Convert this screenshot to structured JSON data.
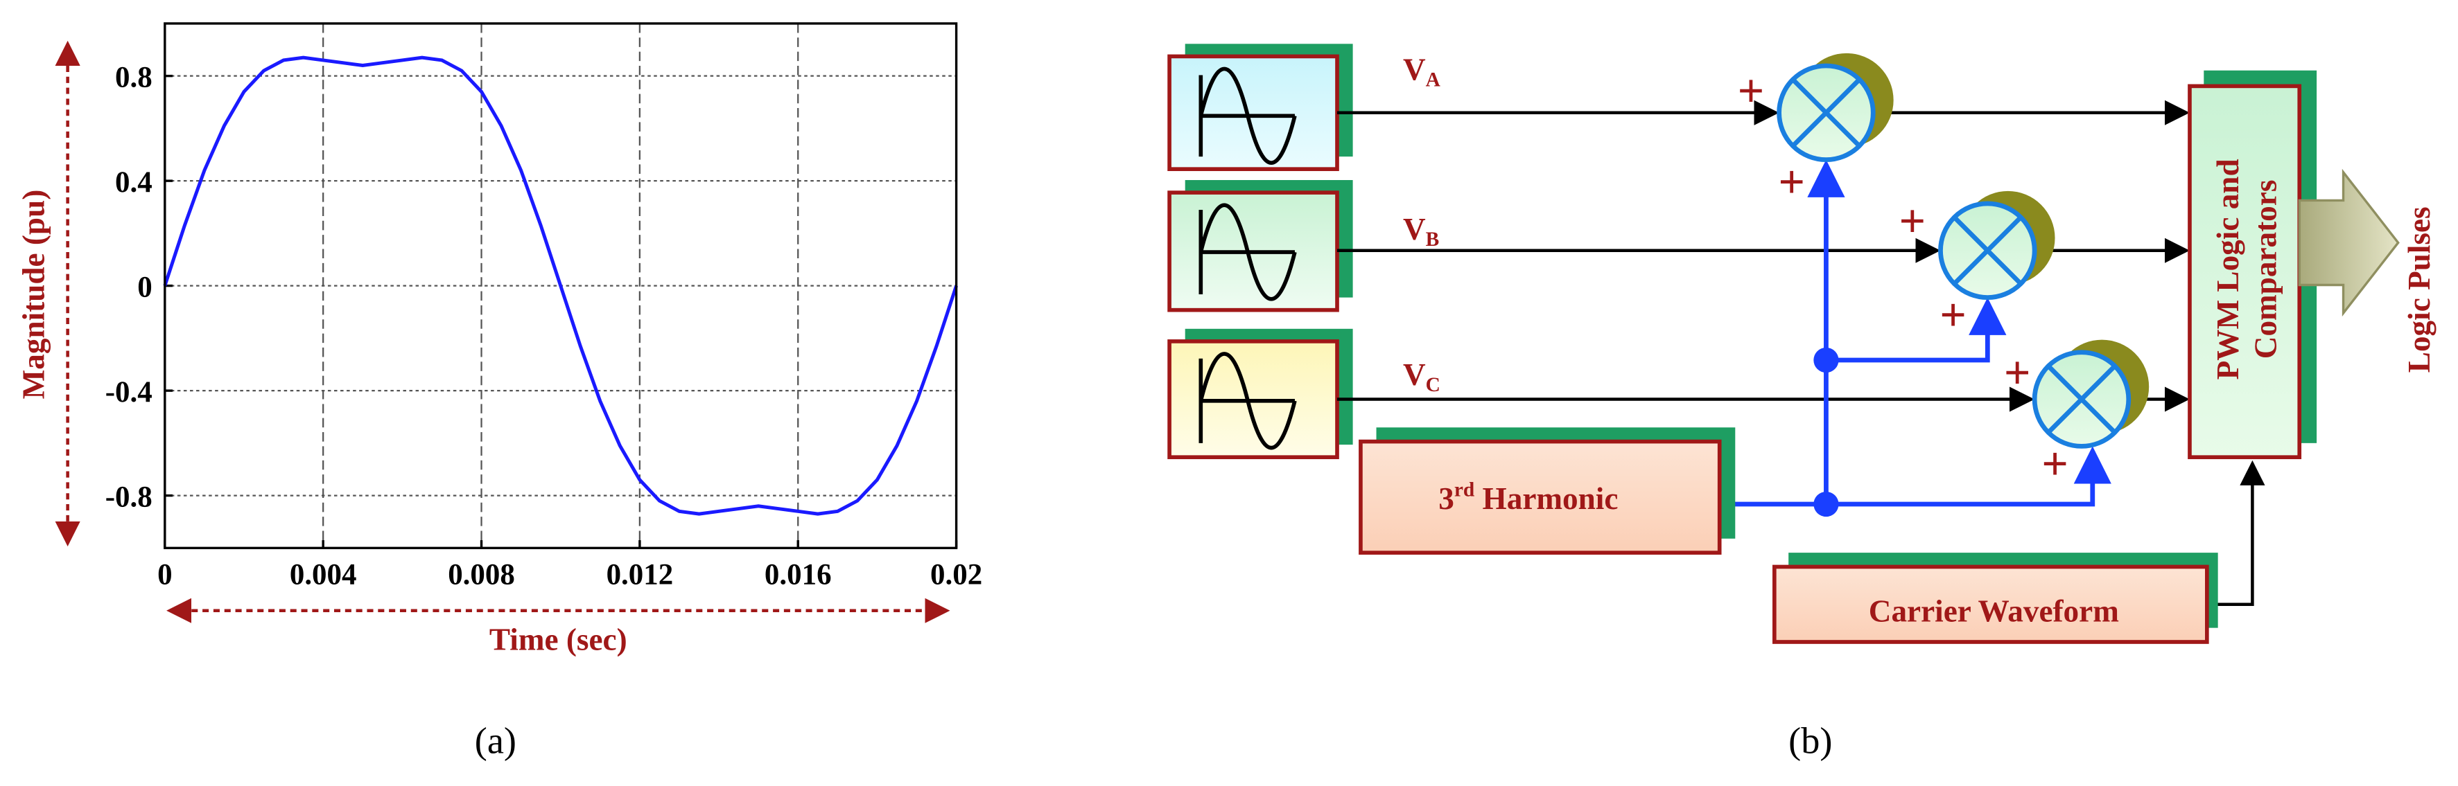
{
  "chart_data": {
    "type": "line",
    "x_label": "Time (sec)",
    "y_label": "Magnitude (pu)",
    "color": "#1a1aff",
    "grid": true,
    "x": [
      0,
      0.0005,
      0.001,
      0.0015,
      0.002,
      0.0025,
      0.003,
      0.0035,
      0.004,
      0.0045,
      0.005,
      0.0055,
      0.006,
      0.0065,
      0.007,
      0.0075,
      0.008,
      0.0085,
      0.009,
      0.0095,
      0.01,
      0.0105,
      0.011,
      0.0115,
      0.012,
      0.0125,
      0.013,
      0.0135,
      0.014,
      0.0145,
      0.015,
      0.0155,
      0.016,
      0.0165,
      0.017,
      0.0175,
      0.018,
      0.0185,
      0.019,
      0.0195,
      0.02
    ],
    "values": [
      0,
      0.23,
      0.44,
      0.61,
      0.74,
      0.82,
      0.86,
      0.87,
      0.86,
      0.85,
      0.84,
      0.85,
      0.86,
      0.87,
      0.86,
      0.82,
      0.74,
      0.61,
      0.44,
      0.23,
      0,
      -0.23,
      -0.44,
      -0.61,
      -0.74,
      -0.82,
      -0.86,
      -0.87,
      -0.86,
      -0.85,
      -0.84,
      -0.85,
      -0.86,
      -0.87,
      -0.86,
      -0.82,
      -0.74,
      -0.61,
      -0.44,
      -0.23,
      0
    ],
    "xlim": [
      0,
      0.02
    ],
    "xticks": [
      0,
      0.004,
      0.008,
      0.012,
      0.016,
      0.02
    ],
    "ylim": [
      -1,
      1
    ],
    "yticks": [
      -0.8,
      -0.4,
      0,
      0.4,
      0.8
    ]
  },
  "diagram": {
    "sources": [
      {
        "main": "V",
        "sub": "A"
      },
      {
        "main": "V",
        "sub": "B"
      },
      {
        "main": "V",
        "sub": "C"
      }
    ],
    "harmonic": {
      "main": "3",
      "sup": "rd",
      "rest": " Harmonic"
    },
    "carrier": "Carrier Waveform",
    "pwm": [
      "PWM Logic and",
      "Comparators"
    ],
    "output": "Logic Pulses",
    "signs": [
      "+",
      "+",
      "+",
      "+",
      "+",
      "+"
    ]
  },
  "captions": [
    "(a)",
    "(b)"
  ]
}
